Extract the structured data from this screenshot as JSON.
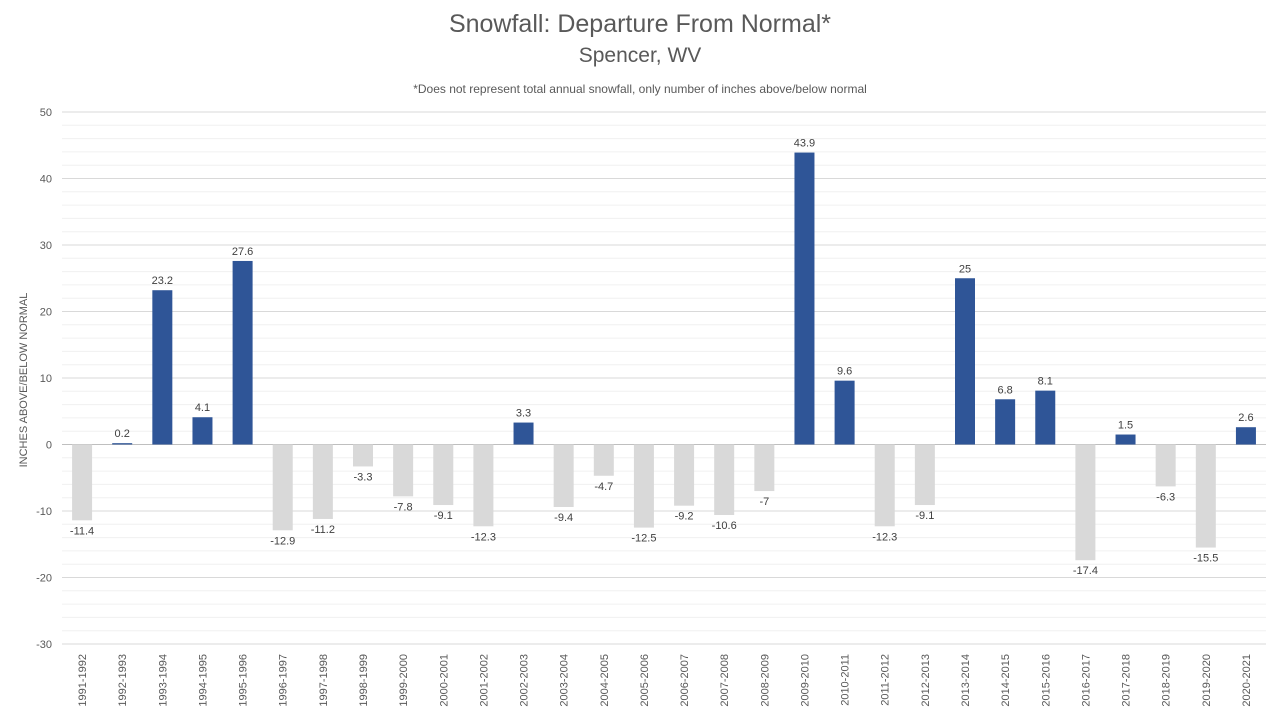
{
  "chart_data": {
    "type": "bar",
    "title": "Snowfall: Departure From Normal*",
    "subtitle": "Spencer, WV",
    "note": "*Does not represent  total annual snowfall, only number of inches above/below normal",
    "xlabel": "",
    "ylabel": "INCHES ABOVE/BELOW NORMAL",
    "ylim": [
      -30,
      50
    ],
    "yticks": [
      -30,
      -20,
      -10,
      0,
      10,
      20,
      30,
      40,
      50
    ],
    "grid": true,
    "legend": "none",
    "colors": {
      "positive": "#2f5597",
      "negative": "#d9d9d9",
      "grid": "#d9d9d9",
      "text": "#595959"
    },
    "categories": [
      "1991-1992",
      "1992-1993",
      "1993-1994",
      "1994-1995",
      "1995-1996",
      "1996-1997",
      "1997-1998",
      "1998-1999",
      "1999-2000",
      "2000-2001",
      "2001-2002",
      "2002-2003",
      "2003-2004",
      "2004-2005",
      "2005-2006",
      "2006-2007",
      "2007-2008",
      "2008-2009",
      "2009-2010",
      "2010-2011",
      "2011-2012",
      "2012-2013",
      "2013-2014",
      "2014-2015",
      "2015-2016",
      "2016-2017",
      "2017-2018",
      "2018-2019",
      "2019-2020",
      "2020-2021"
    ],
    "values": [
      -11.4,
      0.2,
      23.2,
      4.1,
      27.6,
      -12.9,
      -11.2,
      -3.3,
      -7.8,
      -9.1,
      -12.3,
      3.3,
      -9.4,
      -4.7,
      -12.5,
      -9.2,
      -10.6,
      -7,
      43.9,
      9.6,
      -12.3,
      -9.1,
      25,
      6.8,
      8.1,
      -17.4,
      1.5,
      -6.3,
      -15.5,
      2.6
    ],
    "value_labels": [
      "-11.4",
      "0.2",
      "23.2",
      "4.1",
      "27.6",
      "-12.9",
      "-11.2",
      "-3.3",
      "-7.8",
      "-9.1",
      "-12.3",
      "3.3",
      "-9.4",
      "-4.7",
      "-12.5",
      "-9.2",
      "-10.6",
      "-7",
      "43.9",
      "9.6",
      "-12.3",
      "-9.1",
      "25",
      "6.8",
      "8.1",
      "-17.4",
      "1.5",
      "-6.3",
      "-15.5",
      "2.6"
    ]
  }
}
